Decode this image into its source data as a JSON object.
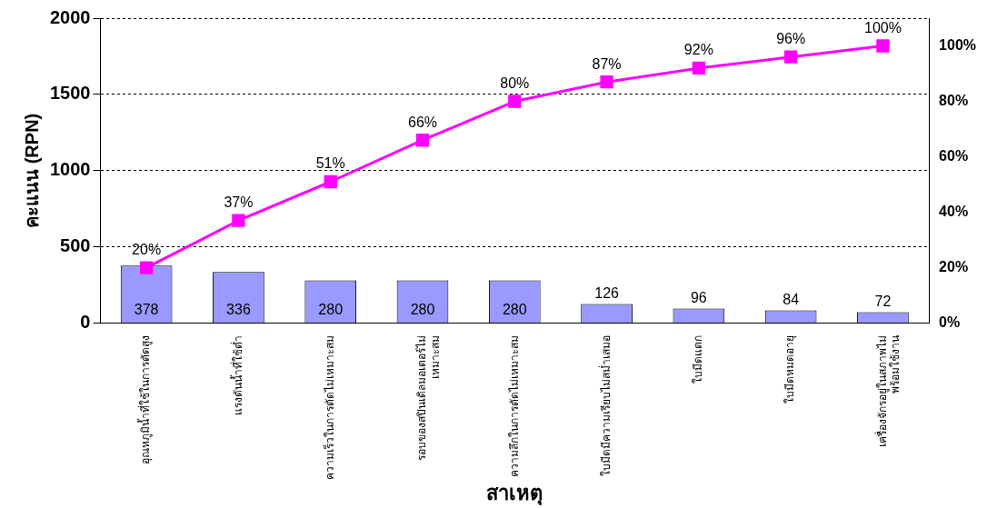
{
  "chart_data": {
    "type": "bar",
    "xlabel": "สาเหตุ",
    "ylabel": "คะแนน (RPN)",
    "categories": [
      "อุณหภูมิน้ำที่ใช้ในการตัดสูง",
      "แรงดันน้ำที่ใช้ต่ำ",
      "ความเร็วในการตัดไม่เหมาะสม",
      "รอบของสปินเดิลมอเตอร์ไม่\nเหมาะสม",
      "ความลึกในการตัดไม่เหมาะสม",
      "ใบมีดมีความเรียบไม่สม่ำเสมอ",
      "ใบมีดแตก",
      "ใบมีดหมดอายุ",
      "เครื่องจักรอยู่ในสภาพไม่\nพร้อมใช้งาน"
    ],
    "series": [
      {
        "color": "#9999ff",
        "values": [
          378,
          336,
          280,
          280,
          280,
          126,
          96,
          84,
          72
        ]
      },
      {
        "type": "line",
        "axis": "y2",
        "color": "#ff00ff",
        "values": [
          20,
          37,
          51,
          66,
          80,
          87,
          92,
          96,
          100
        ],
        "value_labels": [
          "20%",
          "37%",
          "51%",
          "66%",
          "80%",
          "87%",
          "92%",
          "96%",
          "100%"
        ]
      }
    ],
    "data_labels": true,
    "marker": "square",
    "line_style": "solid",
    "grid": "y",
    "legend": false,
    "ylim": [
      0,
      2000
    ],
    "yticks": [
      0,
      500,
      1000,
      1500,
      2000
    ],
    "y2lim": [
      0,
      110
    ],
    "y2ticks": [
      {
        "value": 0,
        "label": "0%"
      },
      {
        "value": 20,
        "label": "20%"
      },
      {
        "value": 40,
        "label": "40%"
      },
      {
        "value": 60,
        "label": "60%"
      },
      {
        "value": 80,
        "label": "80%"
      },
      {
        "value": 100,
        "label": "100%"
      }
    ]
  }
}
